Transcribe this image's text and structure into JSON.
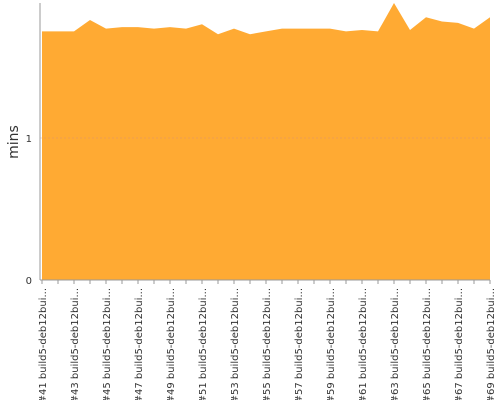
{
  "chart_data": {
    "type": "area",
    "y_label": "mins",
    "color": "#ffaa33",
    "categories": [
      "#41 build5-deb12bui...",
      null,
      "#43 build5-deb12bui...",
      null,
      "#45 build5-deb12bui...",
      null,
      "#47 build5-deb12bui...",
      null,
      "#49 build5-deb12bui...",
      null,
      "#51 build5-deb12bui...",
      null,
      "#53 build5-deb12bui...",
      null,
      "#55 build5-deb12bui...",
      null,
      "#57 build5-deb12bui...",
      null,
      "#59 build5-deb12bui...",
      null,
      "#61 build5-deb12bui...",
      null,
      "#63 build5-deb12bui...",
      null,
      "#65 build5-deb12bui...",
      null,
      "#67 build5-deb12bui...",
      null,
      "#69 build5-deb12bui..."
    ],
    "values": [
      1.75,
      1.75,
      1.75,
      1.83,
      1.77,
      1.78,
      1.78,
      1.77,
      1.78,
      1.77,
      1.8,
      1.73,
      1.77,
      1.73,
      1.75,
      1.77,
      1.77,
      1.77,
      1.77,
      1.75,
      1.76,
      1.75,
      1.95,
      1.76,
      1.85,
      1.82,
      1.81,
      1.77,
      1.85
    ],
    "ylim": [
      0,
      1.95
    ],
    "yticks": [
      0,
      1
    ],
    "grid": true
  }
}
